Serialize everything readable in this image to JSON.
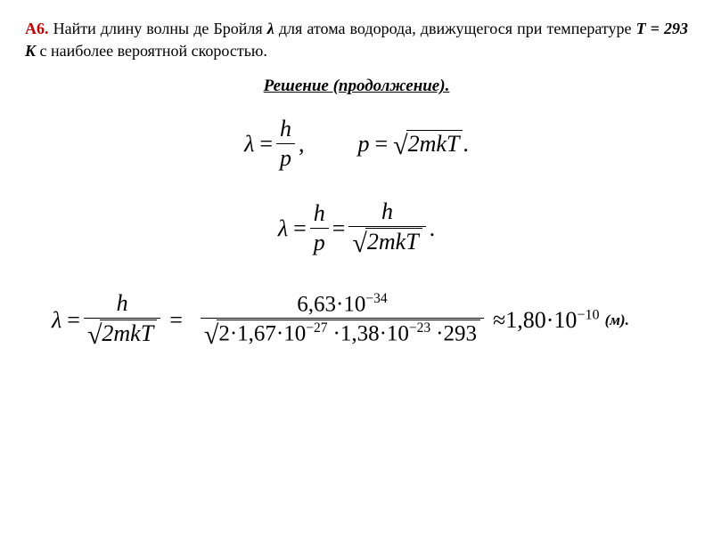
{
  "problem": {
    "number": "А6.",
    "text_before_lambda": " Найти длину волны де Бройля ",
    "lambda_sym": "λ",
    "text_after_lambda": " для атома водорода, движущегося при температуре ",
    "temp_label": "T = 293 K",
    "text_end": " с наиболее вероятной скоростью.",
    "color_number": "#c00000"
  },
  "section_title": "Решение (продолжение).",
  "eq1": {
    "lhs": "λ",
    "eq": "=",
    "num": "h",
    "den": "p",
    "comma": ","
  },
  "eq2": {
    "lhs": "p",
    "eq": "=",
    "radicand": "2mkT",
    "period": " ."
  },
  "eq3": {
    "lhs": "λ",
    "eq": "=",
    "num1": "h",
    "den1": "p",
    "eq2": "=",
    "num2": "h",
    "den2_rad": "2mkT",
    "period": " ."
  },
  "eq4": {
    "lhs": "λ",
    "eq": "=",
    "num1": "h",
    "den1_rad": "2mkT",
    "eq2": "=",
    "num2_a": "6,63",
    "num2_dot": "·",
    "num2_b": "10",
    "num2_exp": "−34",
    "den2_a": "2",
    "den2_b": "1,67",
    "den2_c": "10",
    "den2_c_exp": "−27",
    "den2_d": "1,38",
    "den2_e": "10",
    "den2_e_exp": "−23",
    "den2_f": "293",
    "approx": "≈",
    "res_a": "1,80",
    "res_b": "10",
    "res_exp": "−10",
    "unit": "(м)."
  },
  "style": {
    "font_family": "Times New Roman",
    "base_fontsize": 18,
    "math_fontsize": 26,
    "text_color": "#000000",
    "bg_color": "#ffffff"
  }
}
